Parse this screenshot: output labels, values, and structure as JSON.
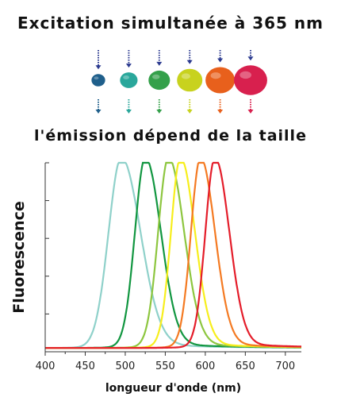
{
  "header": {
    "title": "Excitation simultanée à 365 nm",
    "subtitle": "l'émission dépend de la taille"
  },
  "dots": [
    {
      "color": "#1f5f8b",
      "size": 1
    },
    {
      "color": "#2aa79b",
      "size": 2
    },
    {
      "color": "#34a04a",
      "size": 3
    },
    {
      "color": "#c8d21e",
      "size": 4
    },
    {
      "color": "#e8601c",
      "size": 5
    },
    {
      "color": "#d8204e",
      "size": 6
    }
  ],
  "chart_data": {
    "type": "line",
    "xlabel": "longueur d'onde (nm)",
    "ylabel": "Fluorescence",
    "xlim": [
      400,
      720
    ],
    "ylim": [
      0,
      1
    ],
    "xticks": [
      400,
      450,
      500,
      550,
      600,
      650,
      700
    ],
    "grid": false,
    "legend": "none",
    "series": [
      {
        "color": "#8fd1ca",
        "peak": 495,
        "width": 16
      },
      {
        "color": "#119640",
        "peak": 525,
        "width": 13
      },
      {
        "color": "#8dc63f",
        "peak": 554,
        "width": 13
      },
      {
        "color": "#f7ee1c",
        "peak": 569,
        "width": 12
      },
      {
        "color": "#f47a22",
        "peak": 594,
        "width": 12
      },
      {
        "color": "#e41d2a",
        "peak": 612,
        "width": 12
      }
    ]
  }
}
